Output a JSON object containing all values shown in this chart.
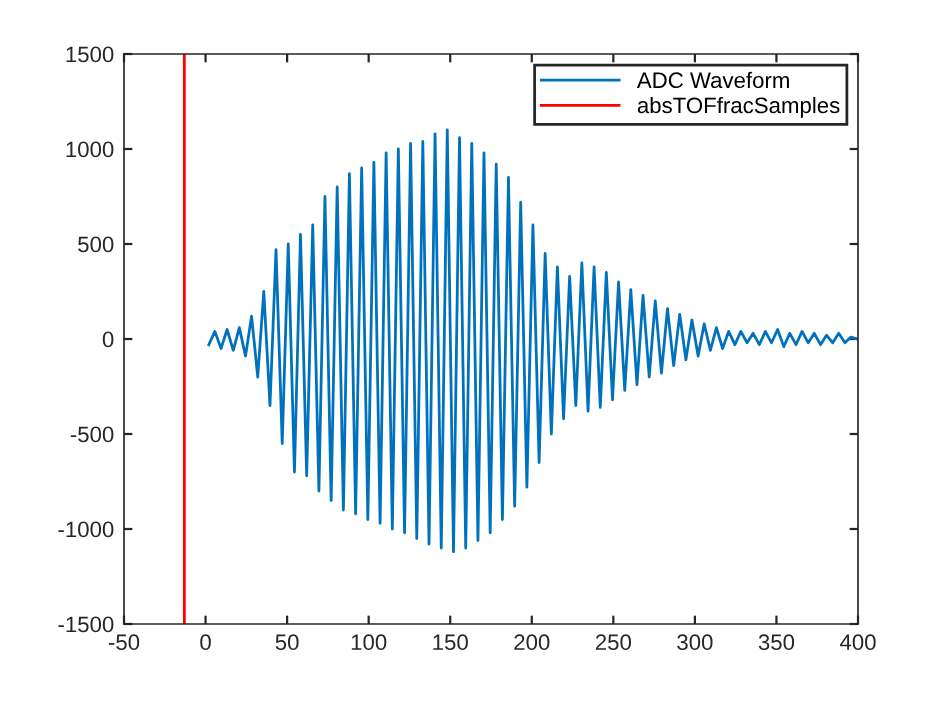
{
  "chart_data": {
    "type": "line",
    "x": [
      2.0,
      5.7,
      9.5,
      13.2,
      17.0,
      20.7,
      24.5,
      28.2,
      32.0,
      35.7,
      39.5,
      43.2,
      47.0,
      50.7,
      54.5,
      58.2,
      62.0,
      65.7,
      69.5,
      73.2,
      77.0,
      80.7,
      84.5,
      88.2,
      92.0,
      95.7,
      99.5,
      103.2,
      107.0,
      110.7,
      114.5,
      118.2,
      122.0,
      125.7,
      129.5,
      133.2,
      137.0,
      140.7,
      144.5,
      148.2,
      152.0,
      155.7,
      159.5,
      163.2,
      167.0,
      170.7,
      174.5,
      178.2,
      182.0,
      185.7,
      189.5,
      193.2,
      197.0,
      200.7,
      204.5,
      208.2,
      212.0,
      215.7,
      219.5,
      223.2,
      227.0,
      230.7,
      234.5,
      238.2,
      242.0,
      245.7,
      249.5,
      253.2,
      257.0,
      260.7,
      264.5,
      268.2,
      272.0,
      275.7,
      279.5,
      283.2,
      287.0,
      290.7,
      294.5,
      298.2,
      302.0,
      305.7,
      309.5,
      313.2,
      317.0,
      320.7,
      324.5,
      328.2,
      332.0,
      335.7,
      339.5,
      343.2,
      347.0,
      350.7,
      354.5,
      358.2,
      362.0,
      365.7,
      369.5,
      373.2,
      377.0,
      380.7,
      384.5,
      388.2,
      392.0,
      395.7,
      399.5
    ],
    "series": [
      {
        "name": "ADC Waveform",
        "color": "#0072bd",
        "values": [
          -30,
          40,
          -50,
          50,
          -60,
          60,
          -90,
          120,
          -200,
          250,
          -350,
          470,
          -550,
          500,
          -700,
          550,
          -720,
          600,
          -800,
          750,
          -850,
          800,
          -900,
          870,
          -920,
          900,
          -950,
          930,
          -970,
          980,
          -1000,
          1000,
          -1020,
          1030,
          -1050,
          1040,
          -1080,
          1080,
          -1100,
          1100,
          -1120,
          1060,
          -1100,
          1030,
          -1060,
          980,
          -1020,
          920,
          -950,
          850,
          -880,
          720,
          -780,
          600,
          -650,
          450,
          -500,
          380,
          -420,
          330,
          -350,
          400,
          -380,
          380,
          -360,
          350,
          -320,
          300,
          -270,
          260,
          -240,
          230,
          -200,
          200,
          -180,
          160,
          -140,
          130,
          -110,
          100,
          -90,
          80,
          -60,
          60,
          -50,
          40,
          -30,
          40,
          -20,
          30,
          -30,
          40,
          -20,
          50,
          -40,
          30,
          -30,
          40,
          -20,
          30,
          -30,
          20,
          -20,
          30,
          -20,
          10,
          0
        ]
      },
      {
        "name": "absTOFfracSamples",
        "color": "#ff0000",
        "x": [
          -13,
          -13
        ],
        "values": [
          -1500,
          1500
        ]
      }
    ],
    "xlim": [
      -50,
      400
    ],
    "xticks": [
      -50,
      0,
      50,
      100,
      150,
      200,
      250,
      300,
      350,
      400
    ],
    "ylim": [
      -1500,
      1500
    ],
    "yticks": [
      -1500,
      -1000,
      -500,
      0,
      500,
      1000,
      1500
    ],
    "grid": false,
    "legend": "top right",
    "marker": "none",
    "line_style": "solid"
  }
}
